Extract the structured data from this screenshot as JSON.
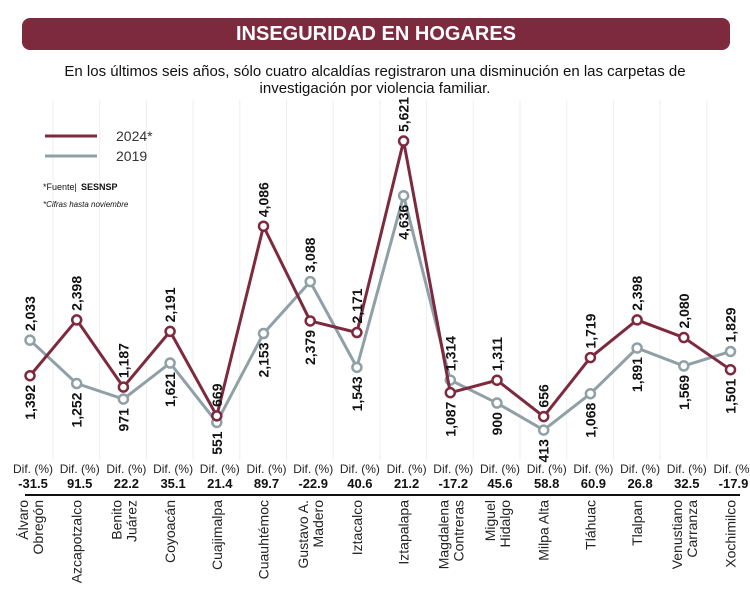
{
  "header": {
    "title": "INSEGURIDAD EN HOGARES"
  },
  "subtitle": "En los últimos seis años, sólo cuatro alcaldías registraron una disminución en las carpetas de investigación por violencia familiar.",
  "notes": {
    "source_prefix": "*Fuente|",
    "source_name": "SESNSP",
    "footnote": "*Cifras hasta noviembre"
  },
  "colors": {
    "series_2024": "#7d2a3f",
    "series_2019": "#8fa0a6"
  },
  "chart_data": {
    "type": "line",
    "categories": [
      "Álvaro Obregón",
      "Azcapotzalco",
      "Benito Juárez",
      "Coyoacán",
      "Cuajimalpa",
      "Cuauhtémoc",
      "Gustavo A. Madero",
      "Iztacalco",
      "Iztapalapa",
      "Magdalena Contreras",
      "Miguel Hidalgo",
      "Milpa Alta",
      "Tláhuac",
      "Tlalpan",
      "Venustiano Carranza",
      "Xochimilco"
    ],
    "series": [
      {
        "name": "2024*",
        "values": [
          1392,
          2398,
          1187,
          2191,
          669,
          4086,
          2379,
          2171,
          5621,
          1087,
          1311,
          656,
          1719,
          2398,
          2080,
          1501
        ],
        "labels": [
          "1,392",
          "2,398",
          "1,187",
          "2,191",
          "669",
          "4,086",
          "2,379",
          "2,171",
          "5,621",
          "1,087",
          "1,311",
          "656",
          "1,719",
          "2,398",
          "2,080",
          "1,501"
        ]
      },
      {
        "name": "2019",
        "values": [
          2033,
          1252,
          971,
          1621,
          551,
          2153,
          3088,
          1543,
          4636,
          1314,
          900,
          413,
          1068,
          1891,
          1569,
          1829
        ],
        "labels": [
          "2,033",
          "1,252",
          "971",
          "1,621",
          "551",
          "2,153",
          "3,088",
          "1,543",
          "4,636",
          "1,314",
          "900",
          "413",
          "1,068",
          "1,891",
          "1,569",
          "1,829"
        ]
      }
    ],
    "diff_label": "Dif. (%)",
    "diff_values": [
      "-31.5",
      "91.5",
      "22.2",
      "35.1",
      "21.4",
      "89.7",
      "-22.9",
      "40.6",
      "21.2",
      "-17.2",
      "45.6",
      "58.8",
      "60.9",
      "26.8",
      "32.5",
      "-17.9"
    ],
    "legend_placement": "top-left",
    "grid": false
  }
}
